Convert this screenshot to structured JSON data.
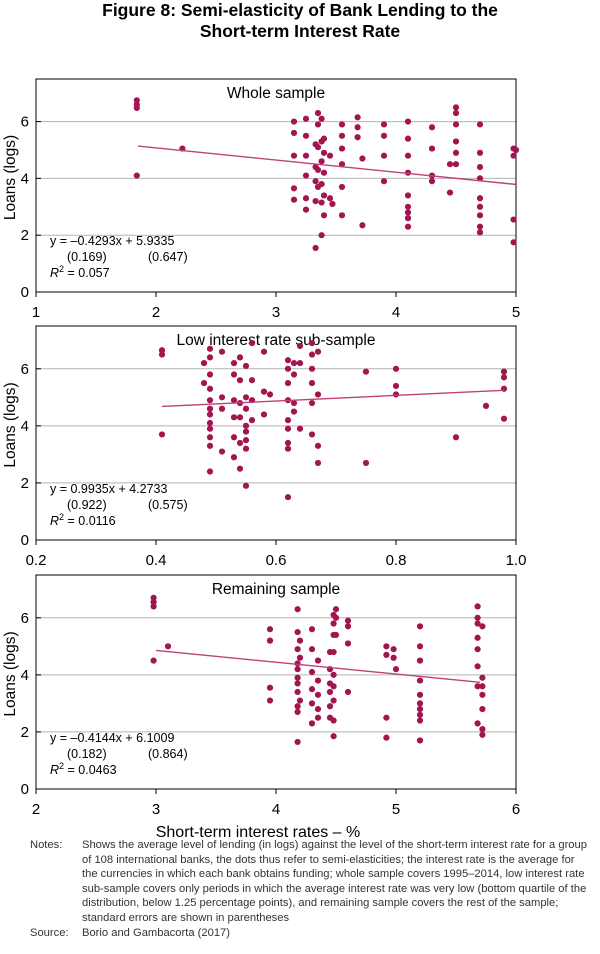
{
  "figure": {
    "title_line1": "Figure 8: Semi-elasticity of Bank Lending to the",
    "title_line2": "Short-term Interest Rate"
  },
  "colors": {
    "points": "#a3154f",
    "trend": "#c0407a",
    "axis": "#000000",
    "grid": "#b3b3b3"
  },
  "shared": {
    "xlabel": "Short-term interest rates – %",
    "ylabel": "Loans (logs)"
  },
  "chart_data": [
    {
      "type": "scatter",
      "title": "Whole sample",
      "xlabel": "",
      "ylabel": "Loans (logs)",
      "xlim": [
        1,
        5
      ],
      "ylim": [
        0,
        7.5
      ],
      "xticks": [
        "1",
        "2",
        "3",
        "4",
        "5"
      ],
      "yticks": [
        "0",
        "2",
        "4",
        "6"
      ],
      "grid": true,
      "trend": {
        "slope": -0.4293,
        "intercept": 5.9335,
        "x_range": [
          1.85,
          5.0
        ]
      },
      "annotation": {
        "equation": "y = –0.4293x + 5.9335",
        "se_slope": "(0.169)",
        "se_intercept": "(0.647)",
        "r2_value": "= 0.057"
      },
      "points": [
        [
          1.84,
          6.75
        ],
        [
          1.84,
          6.6
        ],
        [
          1.84,
          6.48
        ],
        [
          1.84,
          4.1
        ],
        [
          2.22,
          5.05
        ],
        [
          3.15,
          6.0
        ],
        [
          3.15,
          5.6
        ],
        [
          3.15,
          4.8
        ],
        [
          3.15,
          3.65
        ],
        [
          3.15,
          3.25
        ],
        [
          3.25,
          6.1
        ],
        [
          3.25,
          5.5
        ],
        [
          3.25,
          4.8
        ],
        [
          3.25,
          4.1
        ],
        [
          3.25,
          3.3
        ],
        [
          3.25,
          2.9
        ],
        [
          3.33,
          5.2
        ],
        [
          3.33,
          4.4
        ],
        [
          3.33,
          3.9
        ],
        [
          3.33,
          3.2
        ],
        [
          3.33,
          1.55
        ],
        [
          3.35,
          6.3
        ],
        [
          3.35,
          5.9
        ],
        [
          3.35,
          5.1
        ],
        [
          3.35,
          4.3
        ],
        [
          3.35,
          3.7
        ],
        [
          3.38,
          6.1
        ],
        [
          3.38,
          5.3
        ],
        [
          3.38,
          4.6
        ],
        [
          3.38,
          3.8
        ],
        [
          3.38,
          3.15
        ],
        [
          3.38,
          2.0
        ],
        [
          3.4,
          5.4
        ],
        [
          3.4,
          4.9
        ],
        [
          3.4,
          4.2
        ],
        [
          3.4,
          3.4
        ],
        [
          3.4,
          2.7
        ],
        [
          3.45,
          4.8
        ],
        [
          3.45,
          3.3
        ],
        [
          3.47,
          3.1
        ],
        [
          3.55,
          5.9
        ],
        [
          3.55,
          5.5
        ],
        [
          3.55,
          5.05
        ],
        [
          3.55,
          4.5
        ],
        [
          3.55,
          3.7
        ],
        [
          3.55,
          2.7
        ],
        [
          3.68,
          6.15
        ],
        [
          3.68,
          5.8
        ],
        [
          3.68,
          5.45
        ],
        [
          3.72,
          4.7
        ],
        [
          3.72,
          2.35
        ],
        [
          3.9,
          5.9
        ],
        [
          3.9,
          5.5
        ],
        [
          3.9,
          4.8
        ],
        [
          3.9,
          3.9
        ],
        [
          4.1,
          6.0
        ],
        [
          4.1,
          5.4
        ],
        [
          4.1,
          4.8
        ],
        [
          4.1,
          4.2
        ],
        [
          4.1,
          3.4
        ],
        [
          4.1,
          3.0
        ],
        [
          4.1,
          2.8
        ],
        [
          4.1,
          2.6
        ],
        [
          4.1,
          2.3
        ],
        [
          4.3,
          5.8
        ],
        [
          4.3,
          5.05
        ],
        [
          4.3,
          4.1
        ],
        [
          4.3,
          3.9
        ],
        [
          4.45,
          4.5
        ],
        [
          4.45,
          3.5
        ],
        [
          4.5,
          6.5
        ],
        [
          4.5,
          6.3
        ],
        [
          4.5,
          5.9
        ],
        [
          4.5,
          5.3
        ],
        [
          4.5,
          4.9
        ],
        [
          4.5,
          4.5
        ],
        [
          4.7,
          5.9
        ],
        [
          4.7,
          4.9
        ],
        [
          4.7,
          4.4
        ],
        [
          4.7,
          4.0
        ],
        [
          4.7,
          3.3
        ],
        [
          4.7,
          3.0
        ],
        [
          4.7,
          2.7
        ],
        [
          4.7,
          2.3
        ],
        [
          4.7,
          2.1
        ],
        [
          4.98,
          5.05
        ],
        [
          4.98,
          4.8
        ],
        [
          5.0,
          5.0
        ],
        [
          4.98,
          2.55
        ],
        [
          4.98,
          1.75
        ]
      ]
    },
    {
      "type": "scatter",
      "title": "Low interest rate sub-sample",
      "xlabel": "",
      "ylabel": "Loans (logs)",
      "xlim": [
        0.2,
        1.0
      ],
      "ylim": [
        0,
        7.5
      ],
      "xticks": [
        "0.2",
        "0.4",
        "0.6",
        "0.8",
        "1.0"
      ],
      "yticks": [
        "0",
        "2",
        "4",
        "6"
      ],
      "grid": true,
      "trend": {
        "slope": 0.9935,
        "intercept": 4.2733,
        "x_range": [
          0.41,
          0.98
        ]
      },
      "annotation": {
        "equation": "y = 0.9935x + 4.2733",
        "se_slope": "(0.922)",
        "se_intercept": "(0.575)",
        "r2_value": "= 0.0116"
      },
      "points": [
        [
          0.41,
          6.65
        ],
        [
          0.41,
          6.5
        ],
        [
          0.41,
          3.7
        ],
        [
          0.48,
          6.2
        ],
        [
          0.48,
          5.5
        ],
        [
          0.49,
          6.7
        ],
        [
          0.49,
          6.4
        ],
        [
          0.49,
          5.8
        ],
        [
          0.49,
          5.3
        ],
        [
          0.49,
          4.9
        ],
        [
          0.49,
          4.6
        ],
        [
          0.49,
          4.4
        ],
        [
          0.49,
          4.1
        ],
        [
          0.49,
          3.9
        ],
        [
          0.49,
          3.6
        ],
        [
          0.49,
          3.3
        ],
        [
          0.49,
          2.4
        ],
        [
          0.51,
          6.6
        ],
        [
          0.51,
          5.0
        ],
        [
          0.51,
          4.6
        ],
        [
          0.51,
          3.1
        ],
        [
          0.53,
          6.2
        ],
        [
          0.53,
          5.8
        ],
        [
          0.53,
          4.9
        ],
        [
          0.53,
          4.3
        ],
        [
          0.53,
          3.6
        ],
        [
          0.53,
          2.9
        ],
        [
          0.54,
          6.4
        ],
        [
          0.54,
          5.6
        ],
        [
          0.54,
          4.8
        ],
        [
          0.54,
          4.3
        ],
        [
          0.54,
          3.4
        ],
        [
          0.54,
          2.5
        ],
        [
          0.55,
          6.1
        ],
        [
          0.55,
          5.0
        ],
        [
          0.55,
          4.6
        ],
        [
          0.55,
          4.0
        ],
        [
          0.55,
          3.8
        ],
        [
          0.55,
          3.5
        ],
        [
          0.55,
          3.2
        ],
        [
          0.55,
          1.9
        ],
        [
          0.56,
          6.9
        ],
        [
          0.56,
          5.6
        ],
        [
          0.56,
          4.9
        ],
        [
          0.56,
          4.2
        ],
        [
          0.58,
          6.6
        ],
        [
          0.58,
          5.2
        ],
        [
          0.58,
          4.4
        ],
        [
          0.59,
          5.1
        ],
        [
          0.62,
          6.3
        ],
        [
          0.62,
          6.0
        ],
        [
          0.62,
          5.5
        ],
        [
          0.62,
          4.9
        ],
        [
          0.62,
          4.2
        ],
        [
          0.62,
          3.9
        ],
        [
          0.62,
          3.4
        ],
        [
          0.62,
          3.2
        ],
        [
          0.62,
          1.5
        ],
        [
          0.63,
          6.2
        ],
        [
          0.63,
          5.8
        ],
        [
          0.63,
          4.8
        ],
        [
          0.63,
          4.5
        ],
        [
          0.64,
          6.8
        ],
        [
          0.64,
          6.2
        ],
        [
          0.64,
          3.9
        ],
        [
          0.66,
          6.9
        ],
        [
          0.66,
          6.5
        ],
        [
          0.66,
          6.0
        ],
        [
          0.66,
          5.5
        ],
        [
          0.66,
          4.8
        ],
        [
          0.66,
          3.7
        ],
        [
          0.67,
          6.6
        ],
        [
          0.67,
          5.1
        ],
        [
          0.67,
          3.3
        ],
        [
          0.67,
          2.7
        ],
        [
          0.75,
          5.9
        ],
        [
          0.75,
          2.7
        ],
        [
          0.8,
          6.0
        ],
        [
          0.8,
          5.4
        ],
        [
          0.8,
          5.1
        ],
        [
          0.9,
          3.6
        ],
        [
          0.95,
          4.7
        ],
        [
          0.98,
          5.9
        ],
        [
          0.98,
          5.7
        ],
        [
          0.98,
          5.3
        ],
        [
          0.98,
          4.25
        ]
      ]
    },
    {
      "type": "scatter",
      "title": "Remaining sample",
      "xlabel": "Short-term interest rates – %",
      "ylabel": "Loans (logs)",
      "xlim": [
        2,
        6
      ],
      "ylim": [
        0,
        7.5
      ],
      "xticks": [
        "2",
        "3",
        "4",
        "5",
        "6"
      ],
      "yticks": [
        "0",
        "2",
        "4",
        "6"
      ],
      "grid": true,
      "trend": {
        "slope": -0.4144,
        "intercept": 6.1009,
        "x_range": [
          3.0,
          5.7
        ]
      },
      "annotation": {
        "equation": "y = –0.4144x + 6.1009",
        "se_slope": "(0.182)",
        "se_intercept": "(0.864)",
        "r2_value": "= 0.0463"
      },
      "points": [
        [
          2.98,
          6.7
        ],
        [
          2.98,
          6.55
        ],
        [
          2.98,
          6.4
        ],
        [
          2.98,
          4.5
        ],
        [
          3.1,
          5.0
        ],
        [
          3.95,
          5.6
        ],
        [
          3.95,
          5.2
        ],
        [
          3.95,
          3.55
        ],
        [
          3.95,
          3.1
        ],
        [
          4.18,
          6.3
        ],
        [
          4.18,
          5.5
        ],
        [
          4.18,
          4.9
        ],
        [
          4.18,
          4.4
        ],
        [
          4.18,
          4.2
        ],
        [
          4.18,
          3.9
        ],
        [
          4.18,
          3.7
        ],
        [
          4.18,
          3.4
        ],
        [
          4.18,
          2.9
        ],
        [
          4.18,
          2.7
        ],
        [
          4.18,
          1.65
        ],
        [
          4.2,
          5.2
        ],
        [
          4.2,
          4.6
        ],
        [
          4.2,
          3.1
        ],
        [
          4.3,
          5.6
        ],
        [
          4.3,
          4.9
        ],
        [
          4.3,
          4.1
        ],
        [
          4.3,
          3.5
        ],
        [
          4.3,
          3.0
        ],
        [
          4.3,
          2.3
        ],
        [
          4.35,
          4.5
        ],
        [
          4.35,
          3.8
        ],
        [
          4.35,
          3.3
        ],
        [
          4.35,
          2.8
        ],
        [
          4.35,
          2.5
        ],
        [
          4.45,
          4.8
        ],
        [
          4.45,
          4.2
        ],
        [
          4.45,
          3.7
        ],
        [
          4.45,
          3.4
        ],
        [
          4.45,
          2.9
        ],
        [
          4.45,
          2.5
        ],
        [
          4.48,
          6.1
        ],
        [
          4.48,
          5.8
        ],
        [
          4.48,
          5.4
        ],
        [
          4.48,
          4.8
        ],
        [
          4.48,
          4.0
        ],
        [
          4.48,
          3.6
        ],
        [
          4.48,
          3.1
        ],
        [
          4.48,
          2.4
        ],
        [
          4.48,
          1.85
        ],
        [
          4.5,
          6.3
        ],
        [
          4.5,
          6.0
        ],
        [
          4.5,
          5.4
        ],
        [
          4.6,
          5.9
        ],
        [
          4.6,
          5.7
        ],
        [
          4.6,
          5.1
        ],
        [
          4.6,
          3.4
        ],
        [
          4.92,
          5.0
        ],
        [
          4.92,
          4.7
        ],
        [
          4.92,
          2.5
        ],
        [
          4.92,
          1.8
        ],
        [
          4.98,
          4.9
        ],
        [
          4.98,
          4.6
        ],
        [
          5.0,
          4.2
        ],
        [
          5.2,
          5.7
        ],
        [
          5.2,
          5.0
        ],
        [
          5.2,
          4.5
        ],
        [
          5.2,
          3.8
        ],
        [
          5.2,
          3.3
        ],
        [
          5.2,
          3.0
        ],
        [
          5.2,
          2.8
        ],
        [
          5.2,
          2.6
        ],
        [
          5.2,
          2.4
        ],
        [
          5.2,
          1.7
        ],
        [
          5.68,
          6.4
        ],
        [
          5.68,
          6.0
        ],
        [
          5.68,
          5.8
        ],
        [
          5.68,
          5.3
        ],
        [
          5.68,
          4.9
        ],
        [
          5.68,
          4.3
        ],
        [
          5.68,
          3.6
        ],
        [
          5.68,
          2.3
        ],
        [
          5.72,
          5.7
        ],
        [
          5.72,
          3.9
        ],
        [
          5.72,
          3.6
        ],
        [
          5.72,
          3.3
        ],
        [
          5.72,
          2.8
        ],
        [
          5.72,
          2.1
        ],
        [
          5.72,
          1.9
        ]
      ]
    }
  ],
  "notes": {
    "label": "Notes:",
    "text": "Shows the average level of lending (in logs) against the level of the short-term interest rate for a group of 108 international banks, the dots thus refer to semi-elasticities; the interest rate is the average for the currencies in which each bank obtains funding; whole sample covers 1995–2014, low interest rate sub-sample covers only periods in which the average interest rate was very low (bottom quartile of the distribution, below 1.25 percentage points), and remaining sample covers the rest of the sample; standard errors are shown in parentheses"
  },
  "source": {
    "label": "Source:",
    "text": "Borio and Gambacorta (2017)"
  }
}
